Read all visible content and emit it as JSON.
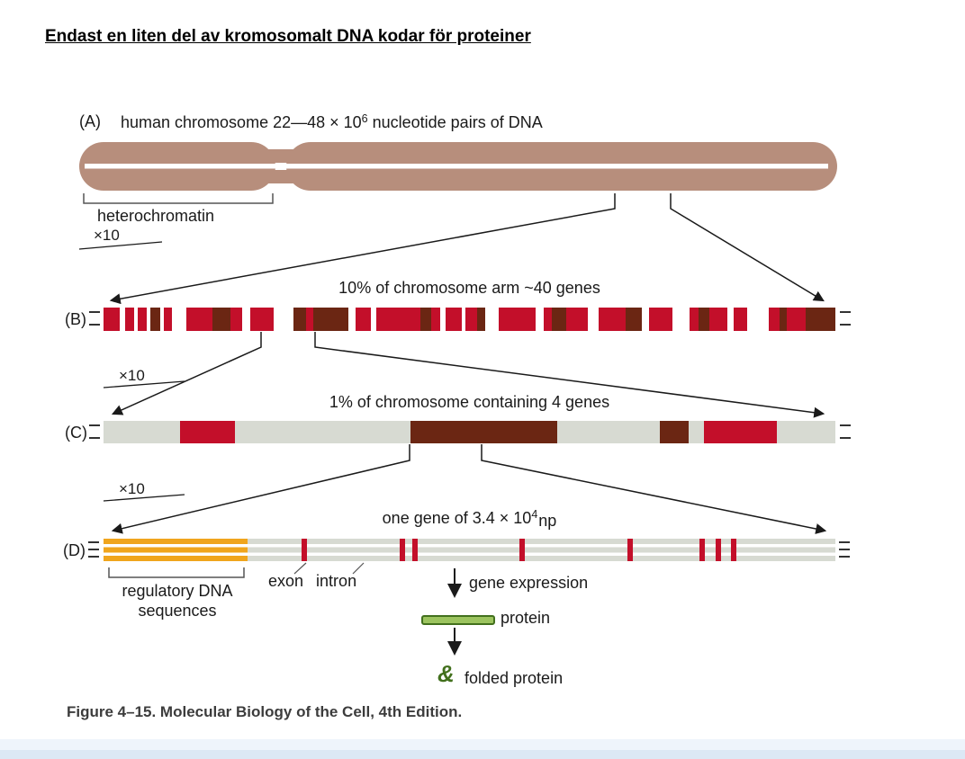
{
  "title": "Endast en liten del av kromosomalt DNA kodar för proteiner",
  "colors": {
    "red": "#c30f2a",
    "dark": "#6b2613",
    "tan": "#b78e7c",
    "gray": "#d7dad2",
    "orange": "#f0a51d",
    "green_fill": "#9cc45f",
    "green_dark": "#42701d"
  },
  "panelA": {
    "label": "(A)",
    "caption_main": "human chromosome 22—48 × 10",
    "caption_sup": "6",
    "caption_tail": " nucleotide pairs of DNA",
    "heterochromatin_label": "heterochromatin",
    "zoom_label": "×10"
  },
  "panelB": {
    "label": "(B)",
    "caption": "10% of chromosome arm ~40 genes",
    "zoom_label": "×10",
    "segments": [
      [
        "r",
        2.2
      ],
      [
        "w",
        0.8
      ],
      [
        "r",
        1.2
      ],
      [
        "w",
        0.5
      ],
      [
        "r",
        1.2
      ],
      [
        "w",
        0.5
      ],
      [
        "d",
        1.4
      ],
      [
        "w",
        0.5
      ],
      [
        "r",
        1.0
      ],
      [
        "w",
        2.0
      ],
      [
        "r",
        3.6
      ],
      [
        "d",
        2.4
      ],
      [
        "r",
        1.6
      ],
      [
        "w",
        1.2
      ],
      [
        "r",
        3.2
      ],
      [
        "w",
        2.6
      ],
      [
        "d",
        1.8
      ],
      [
        "r",
        1.0
      ],
      [
        "d",
        4.8
      ],
      [
        "w",
        1.0
      ],
      [
        "r",
        2.0
      ],
      [
        "w",
        0.8
      ],
      [
        "r",
        6.0
      ],
      [
        "d",
        1.5
      ],
      [
        "r",
        1.2
      ],
      [
        "w",
        0.8
      ],
      [
        "r",
        2.2
      ],
      [
        "w",
        0.5
      ],
      [
        "r",
        1.5
      ],
      [
        "d",
        1.2
      ],
      [
        "w",
        1.8
      ],
      [
        "r",
        5.0
      ],
      [
        "w",
        1.2
      ],
      [
        "r",
        1.0
      ],
      [
        "d",
        2.0
      ],
      [
        "r",
        3.0
      ],
      [
        "w",
        1.5
      ],
      [
        "r",
        3.6
      ],
      [
        "d",
        2.2
      ],
      [
        "w",
        1.0
      ],
      [
        "r",
        3.2
      ],
      [
        "w",
        2.4
      ],
      [
        "r",
        1.2
      ],
      [
        "d",
        1.5
      ],
      [
        "r",
        2.5
      ],
      [
        "w",
        0.8
      ],
      [
        "r",
        1.8
      ],
      [
        "w",
        3.0
      ],
      [
        "r",
        1.5
      ],
      [
        "d",
        1.0
      ],
      [
        "r",
        2.5
      ],
      [
        "d",
        4.1
      ]
    ]
  },
  "panelC": {
    "label": "(C)",
    "caption": "1% of chromosome containing 4 genes",
    "zoom_label": "×10",
    "segments": [
      [
        "g",
        10.5
      ],
      [
        "r",
        7.5
      ],
      [
        "g",
        24
      ],
      [
        "d",
        20
      ],
      [
        "g",
        14
      ],
      [
        "d",
        4
      ],
      [
        "g",
        2
      ],
      [
        "r",
        10
      ],
      [
        "g",
        8
      ]
    ]
  },
  "panelD": {
    "label": "(D)",
    "caption_main": "one gene of 3.4 × 10",
    "caption_sup": "4",
    "caption_tail": "np",
    "regulatory_line1": "regulatory DNA",
    "regulatory_line2": "sequences",
    "exon_label": "exon",
    "intron_label": "intron",
    "ticks": [
      0.274,
      0.408,
      0.426,
      0.572,
      0.72,
      0.818,
      0.84,
      0.861
    ]
  },
  "expression": {
    "gene_expression_label": "gene expression",
    "protein_label": "protein",
    "folded_protein_label": "folded protein",
    "glyph": "&"
  },
  "figure_caption": "Figure 4–15. Molecular Biology of the Cell, 4th Edition."
}
